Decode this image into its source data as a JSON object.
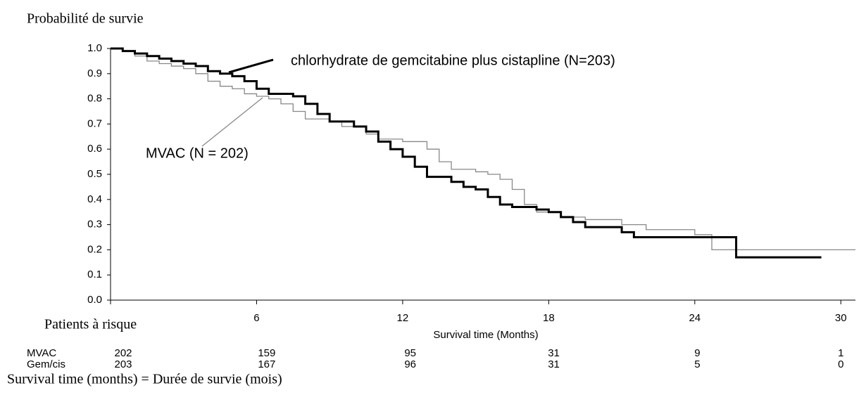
{
  "chart_data": {
    "type": "line",
    "step": true,
    "title": "Probabilité de survie",
    "x_label": "Survival time (Months)",
    "xlim": [
      0,
      30.6
    ],
    "ylim": [
      0,
      1
    ],
    "xticks": [
      6,
      12,
      18,
      24,
      30
    ],
    "yticks": [
      {
        "value": 1,
        "label": "1.0"
      },
      0.9,
      0.8,
      0.7,
      0.6,
      0.5,
      0.4,
      0.3,
      0.2,
      0.1,
      {
        "value": 0,
        "label": "0.0"
      }
    ],
    "series": [
      {
        "name": "chlorhydrate de gemcitabine plus cistapline (N=203)",
        "color": "#000000",
        "width": 3,
        "x": [
          0,
          0.5,
          1,
          1.5,
          2,
          2.5,
          3,
          3.5,
          4,
          4.5,
          5,
          5.5,
          6,
          6.5,
          7.5,
          8,
          8.5,
          9,
          10,
          10.5,
          11,
          11.5,
          12,
          12.5,
          13,
          14,
          14.5,
          15,
          15.5,
          16,
          16.5,
          17.5,
          18,
          18.5,
          19,
          19.5,
          21,
          21.5,
          25.7,
          29.2
        ],
        "values": [
          1,
          0.99,
          0.98,
          0.97,
          0.96,
          0.95,
          0.94,
          0.93,
          0.91,
          0.9,
          0.89,
          0.87,
          0.84,
          0.82,
          0.81,
          0.78,
          0.74,
          0.71,
          0.69,
          0.67,
          0.63,
          0.6,
          0.57,
          0.53,
          0.49,
          0.47,
          0.45,
          0.44,
          0.41,
          0.38,
          0.37,
          0.36,
          0.35,
          0.33,
          0.31,
          0.29,
          0.27,
          0.25,
          0.17,
          0.17
        ]
      },
      {
        "name": "MVAC (N = 202)",
        "color": "#888888",
        "width": 1.3,
        "x": [
          0,
          0.5,
          1,
          1.5,
          2,
          2.5,
          3,
          3.5,
          4,
          4.5,
          5,
          5.5,
          6,
          6.5,
          7,
          7.5,
          8,
          9,
          9.5,
          10.5,
          11,
          12,
          13,
          13.5,
          14,
          15,
          15.5,
          16,
          16.5,
          17,
          17.5,
          18.5,
          19.5,
          21,
          22,
          24,
          24.7,
          30.6
        ],
        "values": [
          1,
          0.99,
          0.97,
          0.95,
          0.94,
          0.93,
          0.92,
          0.9,
          0.87,
          0.85,
          0.84,
          0.82,
          0.81,
          0.8,
          0.78,
          0.75,
          0.72,
          0.71,
          0.69,
          0.66,
          0.64,
          0.63,
          0.6,
          0.55,
          0.52,
          0.51,
          0.5,
          0.48,
          0.44,
          0.38,
          0.35,
          0.33,
          0.32,
          0.3,
          0.28,
          0.26,
          0.2,
          0.2
        ]
      }
    ],
    "risk_table": {
      "title": "Patients à risque",
      "rows": [
        {
          "name": "MVAC",
          "values": [
            202,
            159,
            95,
            31,
            9,
            1
          ]
        },
        {
          "name": "Gem/cis",
          "values": [
            203,
            167,
            96,
            31,
            5,
            0
          ]
        }
      ]
    },
    "footnote": "Survival time (months) = Durée de survie (mois)"
  }
}
